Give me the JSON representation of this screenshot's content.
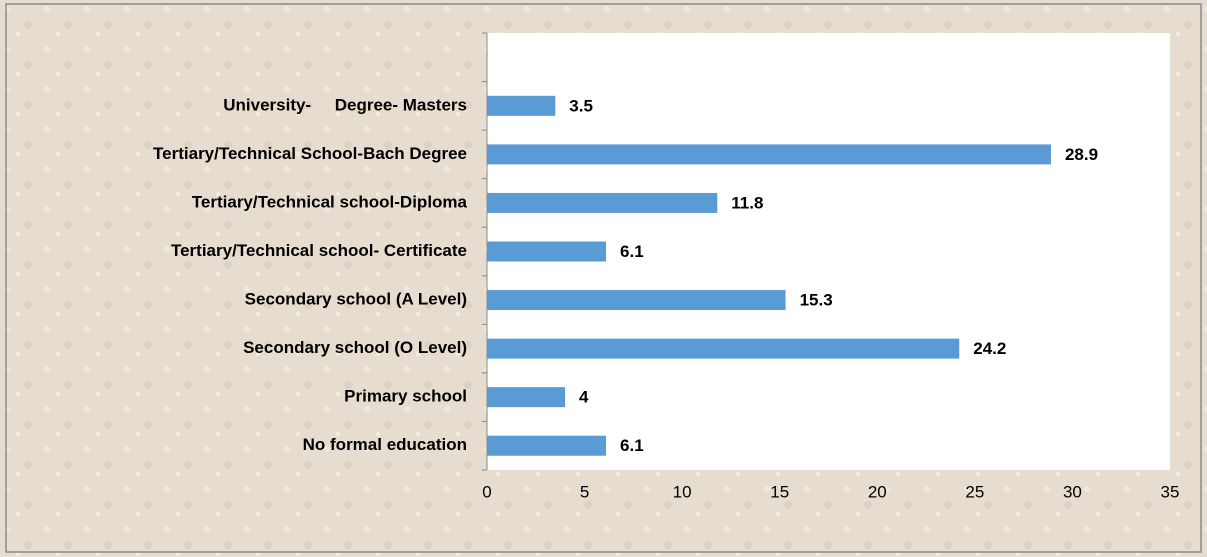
{
  "chart_data": {
    "type": "hbar",
    "categories": [
      "No formal education",
      "Primary school",
      "Secondary school (O Level)",
      "Secondary school (A Level)",
      "Tertiary/Technical school- Certificate",
      "Tertiary/Technical school-Diploma",
      "Tertiary/Technical School-Bach Degree",
      "University-     Degree- Masters",
      null
    ],
    "values": [
      6.1,
      4,
      24.2,
      15.3,
      6.1,
      11.8,
      28.9,
      3.5,
      null
    ],
    "color": "#5b9bd5",
    "xlim": [
      0,
      35
    ],
    "xticks": [
      0,
      5,
      10,
      15,
      20,
      25,
      30,
      35
    ],
    "grid": false
  }
}
